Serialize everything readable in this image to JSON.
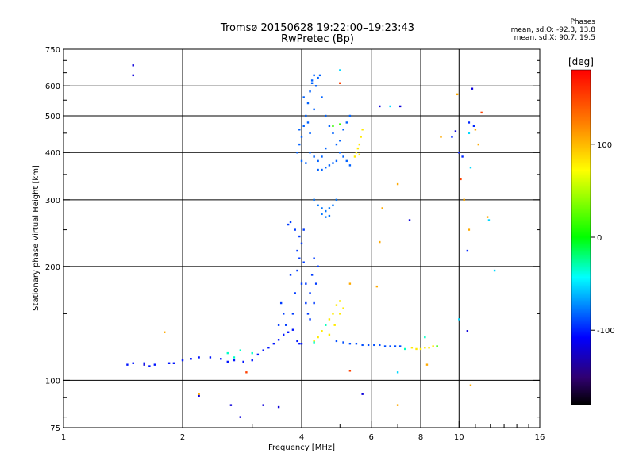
{
  "header": {
    "title": "Tromsø 20150628 19:22:00–19:23:43",
    "subtitle": "RwPretec (Bp)"
  },
  "phase_info": {
    "heading": "Phases",
    "o_line": "mean, sd,O: -92.3, 13.8",
    "x_line": "mean, sd,X:  90.7, 19.5"
  },
  "colorbar": {
    "label": "[deg]",
    "range": [
      -180,
      180
    ],
    "ticks": [
      "100",
      "0",
      "-100"
    ],
    "tick_values": [
      100,
      0,
      -100
    ]
  },
  "chart_data": {
    "type": "scatter",
    "xlabel": "Frequency [MHz]",
    "ylabel": "Stationary phase Virtual Height [km]",
    "x_scale": "log",
    "y_scale": "log",
    "xlim": [
      1,
      16
    ],
    "ylim": [
      75,
      750
    ],
    "x_ticks": [
      1,
      2,
      4,
      6,
      8,
      10,
      16
    ],
    "x_tick_labels": [
      "1",
      "2",
      "4",
      "6",
      "8",
      "10",
      "16"
    ],
    "y_ticks": [
      75,
      100,
      200,
      300,
      400,
      500,
      600,
      750
    ],
    "y_tick_labels": [
      "75",
      "100",
      "200",
      "300",
      "400",
      "500",
      "600",
      "750"
    ],
    "y_minor_ticks": [
      80,
      90,
      150,
      250,
      350,
      450,
      550,
      650,
      700
    ],
    "grid": true,
    "color_encoding": "phase [deg]",
    "point_groups": [
      {
        "phase": -105,
        "points": [
          [
            1.45,
            110
          ],
          [
            1.5,
            111
          ],
          [
            1.6,
            111
          ],
          [
            1.65,
            109
          ],
          [
            1.7,
            110
          ],
          [
            1.85,
            111
          ],
          [
            1.9,
            111
          ],
          [
            2.0,
            113
          ],
          [
            2.1,
            114
          ],
          [
            2.2,
            115
          ],
          [
            2.35,
            115
          ],
          [
            2.5,
            114
          ],
          [
            2.6,
            112
          ],
          [
            2.7,
            113
          ],
          [
            2.85,
            112
          ],
          [
            3.0,
            113
          ],
          [
            3.1,
            117
          ],
          [
            3.2,
            120
          ],
          [
            3.3,
            122
          ],
          [
            3.4,
            125
          ],
          [
            3.5,
            128
          ],
          [
            3.6,
            132
          ],
          [
            3.7,
            134
          ],
          [
            3.8,
            136
          ],
          [
            3.9,
            127
          ],
          [
            3.95,
            125
          ],
          [
            4.0,
            125
          ]
        ]
      },
      {
        "phase": -95,
        "points": [
          [
            3.5,
            140
          ],
          [
            3.55,
            160
          ],
          [
            3.6,
            150
          ],
          [
            3.65,
            140
          ],
          [
            3.8,
            150
          ],
          [
            3.85,
            170
          ],
          [
            3.9,
            195
          ],
          [
            3.95,
            210
          ],
          [
            4.0,
            230
          ],
          [
            4.05,
            250
          ],
          [
            3.95,
            240
          ],
          [
            4.0,
            180
          ],
          [
            4.1,
            160
          ],
          [
            4.15,
            150
          ],
          [
            4.2,
            170
          ],
          [
            4.25,
            190
          ],
          [
            4.3,
            210
          ],
          [
            3.7,
            258
          ],
          [
            3.75,
            262
          ],
          [
            3.85,
            250
          ],
          [
            3.9,
            220
          ],
          [
            4.05,
            205
          ],
          [
            4.1,
            180
          ],
          [
            3.75,
            190
          ],
          [
            4.2,
            145
          ],
          [
            4.3,
            160
          ],
          [
            4.35,
            180
          ],
          [
            4.4,
            200
          ]
        ]
      },
      {
        "phase": -85,
        "points": [
          [
            3.9,
            400
          ],
          [
            3.95,
            420
          ],
          [
            4.0,
            440
          ],
          [
            4.05,
            470
          ],
          [
            4.1,
            500
          ],
          [
            4.15,
            540
          ],
          [
            4.2,
            580
          ],
          [
            4.25,
            620
          ],
          [
            4.3,
            640
          ],
          [
            4.4,
            630
          ],
          [
            4.5,
            560
          ],
          [
            4.6,
            500
          ],
          [
            4.7,
            470
          ],
          [
            4.8,
            450
          ],
          [
            4.9,
            420
          ],
          [
            5.0,
            400
          ],
          [
            5.1,
            390
          ],
          [
            5.2,
            380
          ],
          [
            5.3,
            370
          ],
          [
            4.4,
            360
          ],
          [
            4.5,
            360
          ],
          [
            4.6,
            365
          ],
          [
            4.7,
            370
          ],
          [
            4.8,
            375
          ],
          [
            4.9,
            380
          ],
          [
            4.2,
            400
          ],
          [
            4.3,
            390
          ],
          [
            4.4,
            380
          ],
          [
            4.5,
            390
          ],
          [
            4.6,
            410
          ],
          [
            4.0,
            380
          ],
          [
            4.1,
            375
          ],
          [
            4.2,
            450
          ],
          [
            4.3,
            520
          ],
          [
            4.35,
            600
          ],
          [
            4.45,
            640
          ],
          [
            4.25,
            610
          ],
          [
            4.15,
            480
          ],
          [
            4.05,
            560
          ],
          [
            3.95,
            460
          ],
          [
            5.0,
            430
          ],
          [
            5.1,
            460
          ],
          [
            5.2,
            480
          ],
          [
            5.3,
            500
          ]
        ]
      },
      {
        "phase": -80,
        "points": [
          [
            4.3,
            300
          ],
          [
            4.4,
            290
          ],
          [
            4.5,
            285
          ],
          [
            4.6,
            280
          ],
          [
            4.7,
            285
          ],
          [
            4.8,
            290
          ],
          [
            4.9,
            300
          ],
          [
            4.5,
            275
          ],
          [
            4.6,
            270
          ],
          [
            4.7,
            272
          ]
        ]
      },
      {
        "phase": -90,
        "points": [
          [
            4.9,
            127
          ],
          [
            5.1,
            126
          ],
          [
            5.3,
            125
          ],
          [
            5.5,
            125
          ],
          [
            5.7,
            124
          ],
          [
            5.9,
            124
          ],
          [
            6.1,
            124
          ],
          [
            6.3,
            124
          ],
          [
            6.5,
            123
          ],
          [
            6.7,
            123
          ],
          [
            6.9,
            123
          ],
          [
            7.1,
            123
          ]
        ]
      },
      {
        "phase": 95,
        "points": [
          [
            4.3,
            127
          ],
          [
            4.4,
            130
          ],
          [
            4.5,
            135
          ],
          [
            4.6,
            140
          ],
          [
            4.7,
            145
          ],
          [
            4.8,
            150
          ],
          [
            4.9,
            158
          ],
          [
            5.0,
            162
          ],
          [
            4.7,
            132
          ],
          [
            4.85,
            140
          ],
          [
            5.0,
            150
          ],
          [
            5.1,
            155
          ],
          [
            5.5,
            400
          ],
          [
            5.55,
            410
          ],
          [
            5.6,
            420
          ],
          [
            5.65,
            440
          ],
          [
            5.7,
            460
          ],
          [
            5.45,
            390
          ],
          [
            5.6,
            395
          ],
          [
            7.6,
            122
          ],
          [
            7.8,
            121
          ],
          [
            8.0,
            121
          ],
          [
            8.2,
            122
          ],
          [
            8.4,
            122
          ],
          [
            8.6,
            123
          ]
        ]
      },
      {
        "phase": -35,
        "points": [
          [
            2.6,
            118
          ],
          [
            2.7,
            115
          ],
          [
            2.8,
            120
          ],
          [
            3.0,
            118
          ],
          [
            4.3,
            126
          ],
          [
            4.6,
            140
          ],
          [
            7.3,
            121
          ],
          [
            8.2,
            130
          ]
        ]
      },
      {
        "phase": 20,
        "points": [
          [
            4.8,
            470
          ],
          [
            5.0,
            475
          ],
          [
            8.8,
            123
          ]
        ]
      },
      {
        "phase": -120,
        "points": [
          [
            1.5,
            680
          ],
          [
            1.5,
            640
          ],
          [
            1.6,
            110
          ],
          [
            2.2,
            91
          ],
          [
            2.65,
            86
          ],
          [
            2.8,
            80
          ],
          [
            3.2,
            86
          ],
          [
            3.5,
            85
          ],
          [
            5.7,
            92
          ],
          [
            6.3,
            530
          ],
          [
            7.1,
            530
          ],
          [
            7.5,
            265
          ],
          [
            9.8,
            455
          ],
          [
            10.5,
            135
          ],
          [
            10.8,
            590
          ]
        ]
      },
      {
        "phase": 150,
        "points": [
          [
            2.9,
            105
          ],
          [
            5.0,
            610
          ],
          [
            5.3,
            106
          ],
          [
            10.0,
            400
          ],
          [
            10.1,
            340
          ],
          [
            11.4,
            510
          ]
        ]
      },
      {
        "phase": 110,
        "points": [
          [
            1.8,
            134
          ],
          [
            2.2,
            92
          ],
          [
            5.3,
            180
          ],
          [
            6.2,
            177
          ],
          [
            6.4,
            285
          ],
          [
            6.3,
            232
          ],
          [
            7.0,
            330
          ],
          [
            7.0,
            86
          ],
          [
            8.3,
            110
          ],
          [
            9.0,
            440
          ],
          [
            9.9,
            570
          ],
          [
            10.3,
            300
          ],
          [
            10.6,
            250
          ],
          [
            10.7,
            97
          ],
          [
            11.0,
            460
          ],
          [
            11.2,
            420
          ],
          [
            11.8,
            270
          ]
        ]
      },
      {
        "phase": -55,
        "points": [
          [
            5.0,
            660
          ],
          [
            6.7,
            530
          ],
          [
            10.6,
            450
          ],
          [
            11.9,
            265
          ],
          [
            12.3,
            195
          ],
          [
            10.0,
            145
          ],
          [
            7.0,
            105
          ],
          [
            10.7,
            365
          ]
        ]
      },
      {
        "phase": -100,
        "points": [
          [
            10.0,
            400
          ],
          [
            10.5,
            220
          ],
          [
            10.6,
            480
          ],
          [
            10.9,
            470
          ],
          [
            10.2,
            390
          ],
          [
            9.6,
            440
          ]
        ]
      }
    ]
  }
}
